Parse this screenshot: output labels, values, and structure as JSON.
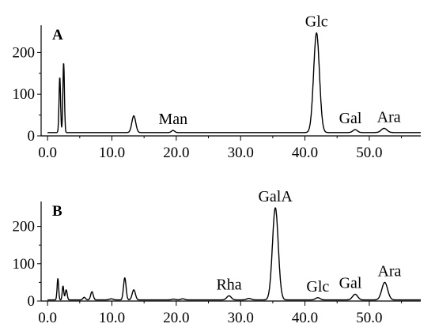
{
  "chart_data": [
    {
      "type": "line",
      "panel_label": "A",
      "xlim": [
        -1,
        58
      ],
      "ylim": [
        0,
        250
      ],
      "x_ticks": [
        0,
        10,
        20,
        30,
        40,
        50
      ],
      "x_tick_labels": [
        "0.0",
        "10.0",
        "20.0",
        "30.0",
        "40.0",
        "50.0"
      ],
      "y_ticks": [
        0,
        100,
        200
      ],
      "y_tick_labels": [
        "0",
        "100",
        "200"
      ],
      "baseline": 8,
      "peaks": [
        {
          "x": 1.9,
          "y": 140,
          "w": 0.12
        },
        {
          "x": 2.5,
          "y": 175,
          "w": 0.12
        },
        {
          "x": 13.4,
          "y": 48,
          "w": 0.3
        },
        {
          "x": 19.5,
          "y": 13,
          "w": 0.25
        },
        {
          "x": 41.8,
          "y": 247,
          "w": 0.45
        },
        {
          "x": 47.8,
          "y": 15,
          "w": 0.35
        },
        {
          "x": 52.3,
          "y": 18,
          "w": 0.45
        }
      ],
      "annotations": [
        {
          "text": "Man",
          "x": 19.5,
          "y": 13
        },
        {
          "text": "Glc",
          "x": 41.8,
          "y": 247
        },
        {
          "text": "Gal",
          "x": 47.8,
          "y": 15
        },
        {
          "text": "Ara",
          "x": 52.3,
          "y": 18
        }
      ]
    },
    {
      "type": "line",
      "panel_label": "B",
      "xlim": [
        -1,
        58
      ],
      "ylim": [
        0,
        250
      ],
      "x_ticks": [
        0,
        10,
        20,
        30,
        40,
        50
      ],
      "x_tick_labels": [
        "0.0",
        "10.0",
        "20.0",
        "30.0",
        "40.0",
        "50.0"
      ],
      "y_ticks": [
        0,
        100,
        200
      ],
      "y_tick_labels": [
        "0",
        "100",
        "200"
      ],
      "baseline": 3,
      "peaks": [
        {
          "x": 1.6,
          "y": 60,
          "w": 0.12
        },
        {
          "x": 2.4,
          "y": 40,
          "w": 0.12
        },
        {
          "x": 2.9,
          "y": 30,
          "w": 0.15
        },
        {
          "x": 5.7,
          "y": 10,
          "w": 0.2
        },
        {
          "x": 6.9,
          "y": 25,
          "w": 0.2
        },
        {
          "x": 9.9,
          "y": 6,
          "w": 0.3
        },
        {
          "x": 12.0,
          "y": 62,
          "w": 0.2
        },
        {
          "x": 13.4,
          "y": 30,
          "w": 0.25
        },
        {
          "x": 19.6,
          "y": 5,
          "w": 0.3
        },
        {
          "x": 21.0,
          "y": 6,
          "w": 0.3
        },
        {
          "x": 28.2,
          "y": 14,
          "w": 0.35
        },
        {
          "x": 31.3,
          "y": 7,
          "w": 0.35
        },
        {
          "x": 35.4,
          "y": 250,
          "w": 0.45
        },
        {
          "x": 42.0,
          "y": 9,
          "w": 0.35
        },
        {
          "x": 47.8,
          "y": 18,
          "w": 0.4
        },
        {
          "x": 52.4,
          "y": 50,
          "w": 0.45
        }
      ],
      "annotations": [
        {
          "text": "Rha",
          "x": 28.2,
          "y": 14
        },
        {
          "text": "GalA",
          "x": 35.4,
          "y": 250
        },
        {
          "text": "Glc",
          "x": 42.0,
          "y": 9
        },
        {
          "text": "Gal",
          "x": 47.8,
          "y": 18
        },
        {
          "text": "Ara",
          "x": 52.4,
          "y": 50
        }
      ]
    }
  ]
}
